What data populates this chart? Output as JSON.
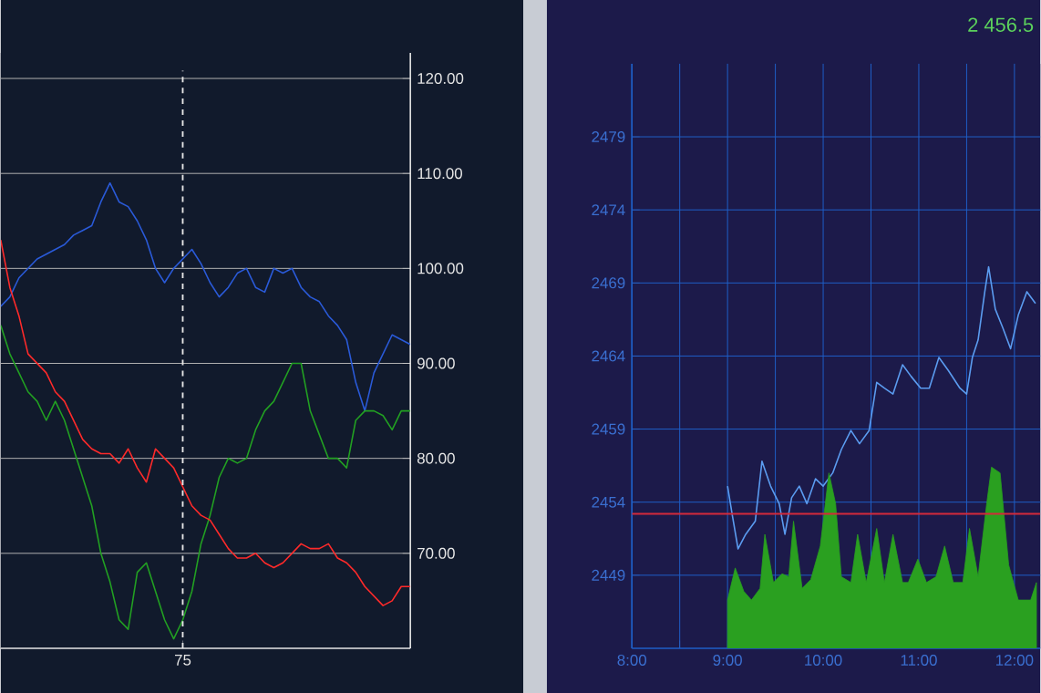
{
  "chart_data": [
    {
      "type": "line",
      "categories": [
        null,
        null,
        null,
        null,
        null,
        null,
        null,
        null,
        null,
        null,
        null,
        null,
        null,
        null,
        null,
        null,
        null,
        null,
        null,
        null,
        "75",
        null,
        null,
        null,
        null,
        null,
        null,
        null,
        null,
        null,
        null,
        null,
        null,
        null,
        null,
        null,
        null,
        null,
        null,
        null,
        null,
        null,
        null,
        null,
        null,
        null
      ],
      "series": [
        {
          "color": "#2a5ad8",
          "values": [
            96,
            97,
            99,
            100,
            101,
            101.5,
            102,
            102.5,
            103.5,
            104,
            104.5,
            107,
            109,
            107,
            106.5,
            105,
            103,
            100,
            98.5,
            100,
            101,
            102,
            100.5,
            98.5,
            97,
            98,
            99.5,
            100,
            98,
            97.5,
            100,
            99.5,
            100,
            98,
            97,
            96.5,
            95,
            94,
            92.5,
            88,
            85,
            89,
            91,
            93,
            92.5,
            92
          ]
        },
        {
          "color": "#22a022",
          "values": [
            94,
            91,
            89,
            87,
            86,
            84,
            86,
            84,
            81,
            78,
            75,
            70,
            67,
            63,
            62,
            68,
            69,
            66,
            63,
            61,
            63,
            66,
            71,
            74,
            78,
            80,
            79.5,
            80,
            83,
            85,
            86,
            88,
            90,
            90,
            85,
            82.5,
            80,
            80,
            79,
            84,
            85,
            85,
            84.5,
            83,
            85,
            85
          ]
        },
        {
          "color": "#ff2a2a",
          "values": [
            103,
            98,
            95,
            91,
            90,
            89,
            87,
            86,
            84,
            82,
            81,
            80.5,
            80.5,
            79.5,
            81,
            79,
            77.5,
            81,
            80,
            79,
            77,
            75,
            74,
            73.5,
            72,
            70.5,
            69.5,
            69.5,
            70,
            69,
            68.5,
            69,
            70,
            71,
            70.5,
            70.5,
            71,
            69.5,
            69,
            68,
            66.5,
            65.5,
            64.5,
            65,
            66.5,
            66.5
          ]
        }
      ],
      "ylim": [
        60,
        122.7
      ],
      "yticks": [
        {
          "value": 70,
          "label": "70.00"
        },
        {
          "value": 80,
          "label": "80.00"
        },
        {
          "value": 90,
          "label": "90.00"
        },
        {
          "value": 100,
          "label": "100.00"
        },
        {
          "value": 110,
          "label": "110.00"
        },
        {
          "value": 120,
          "label": "120.00"
        }
      ],
      "ref_lines": [
        {
          "axis": "x",
          "value": "75",
          "color": "#e8e8e8",
          "line_style": "dashed"
        }
      ],
      "grid": "y"
    },
    {
      "type": "line",
      "title": "2 456.5",
      "series": [
        {
          "color": "#5b9cf0",
          "x": [
            9.0,
            9.05,
            9.11,
            9.19,
            9.29,
            9.36,
            9.45,
            9.54,
            9.6,
            9.67,
            9.75,
            9.83,
            9.92,
            10.0,
            10.1,
            10.19,
            10.29,
            10.38,
            10.48,
            10.56,
            10.64,
            10.73,
            10.83,
            10.92,
            11.02,
            11.11,
            11.21,
            11.31,
            11.43,
            11.5,
            11.56,
            11.62,
            11.69,
            11.73,
            11.8,
            11.88,
            11.96,
            12.04,
            12.13,
            12.22
          ],
          "values": [
            2455.1,
            2453.1,
            2450.8,
            2451.8,
            2452.7,
            2456.8,
            2455.1,
            2453.9,
            2451.8,
            2454.3,
            2455.1,
            2453.9,
            2455.6,
            2455.1,
            2456,
            2457.6,
            2458.9,
            2458,
            2458.9,
            2462.2,
            2461.8,
            2461.4,
            2463.4,
            2462.6,
            2461.8,
            2461.8,
            2463.9,
            2463,
            2461.8,
            2461.4,
            2463.9,
            2465.1,
            2468.4,
            2470.1,
            2467.2,
            2465.9,
            2464.5,
            2466.8,
            2468.4,
            2467.6
          ]
        },
        {
          "type": "area",
          "color": "#2aa020",
          "x": [
            9.0,
            9.08,
            9.17,
            9.25,
            9.34,
            9.39,
            9.48,
            9.57,
            9.64,
            9.69,
            9.78,
            9.87,
            9.97,
            10.06,
            10.13,
            10.19,
            10.29,
            10.36,
            10.45,
            10.56,
            10.64,
            10.73,
            10.83,
            10.89,
            10.99,
            11.08,
            11.18,
            11.27,
            11.36,
            11.46,
            11.53,
            11.62,
            11.71,
            11.76,
            11.85,
            11.94,
            12.04,
            12.1,
            12.17,
            12.23
          ],
          "values": [
            2447.3,
            2449.5,
            2447.9,
            2447.3,
            2448.1,
            2451.8,
            2448.5,
            2449.1,
            2448.9,
            2452.7,
            2448.1,
            2448.7,
            2451,
            2456,
            2453.9,
            2448.9,
            2448.5,
            2451.8,
            2448.5,
            2452.2,
            2448.5,
            2451.8,
            2448.5,
            2448.5,
            2450.1,
            2448.5,
            2448.9,
            2451,
            2448.5,
            2448.5,
            2452.2,
            2448.9,
            2453.9,
            2456.4,
            2456,
            2449.7,
            2447.3,
            2447.3,
            2447.3,
            2448.5
          ]
        }
      ],
      "xlim": [
        8,
        12.27
      ],
      "xticks": [
        {
          "value": 8,
          "label": "8:00"
        },
        {
          "value": 8.5,
          "label": null
        },
        {
          "value": 9,
          "label": "9:00"
        },
        {
          "value": 9.5,
          "label": null
        },
        {
          "value": 10,
          "label": "10:00"
        },
        {
          "value": 10.5,
          "label": null
        },
        {
          "value": 11,
          "label": "11:00"
        },
        {
          "value": 11.5,
          "label": null
        },
        {
          "value": 12,
          "label": "12:00"
        }
      ],
      "ylim": [
        2444,
        2484
      ],
      "yticks": [
        2449,
        2454,
        2459,
        2464,
        2469,
        2474,
        2479
      ],
      "ref_lines": [
        {
          "axis": "y",
          "value": 2453.2,
          "color": "#d42a3a"
        }
      ],
      "grid": true
    }
  ]
}
